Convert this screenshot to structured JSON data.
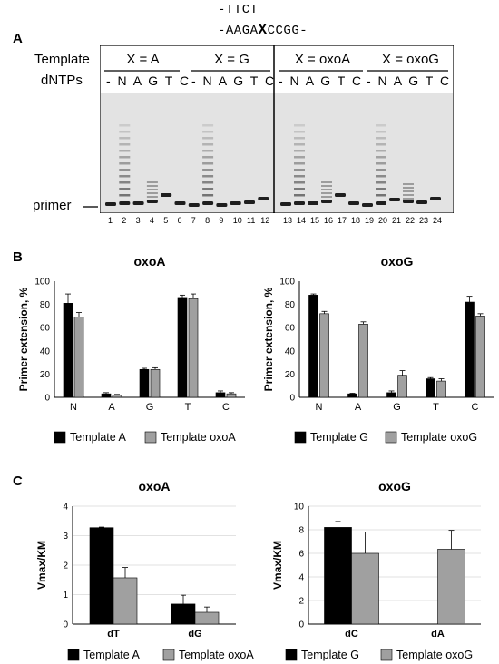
{
  "panels": {
    "A": {
      "letter": "A",
      "seq_top": "-TTCT",
      "seq_bottom_pre": "-AAGA",
      "seq_bottom_x": "X",
      "seq_bottom_post": "CCGG-",
      "row_template_label": "Template",
      "row_dntp_label": "dNTPs",
      "groups": [
        "X = A",
        "X = G",
        "X = oxoA",
        "X = oxoG"
      ],
      "dntp_left": "- N A G T C",
      "dntp_left2": "- N A G T C",
      "dntp_right": "- N A G T C",
      "dntp_right2": "- N A G T C",
      "primer_label": "primer",
      "lane_numbers": [
        "1",
        "2",
        "3",
        "4",
        "5",
        "6",
        "7",
        "8",
        "9",
        "10",
        "11",
        "12",
        "13",
        "14",
        "15",
        "16",
        "17",
        "18",
        "19",
        "20",
        "21",
        "22",
        "23",
        "24"
      ]
    },
    "B": {
      "letter": "B"
    },
    "C": {
      "letter": "C"
    }
  },
  "chart_data": [
    {
      "type": "bar",
      "title": "oxoA",
      "ylabel": "Primer extension, %",
      "categories": [
        "N",
        "A",
        "G",
        "T",
        "C"
      ],
      "ylim": [
        0,
        100
      ],
      "yticks": [
        0,
        20,
        40,
        60,
        80,
        100
      ],
      "series": [
        {
          "name": "Template A",
          "values": [
            81,
            3,
            24,
            86,
            4
          ],
          "errors": [
            8,
            1,
            1,
            2,
            1.5
          ],
          "color": "#000000"
        },
        {
          "name": "Template oxoA",
          "values": [
            69,
            2,
            24,
            85,
            3
          ],
          "errors": [
            4,
            0.5,
            1.5,
            4,
            1
          ],
          "color": "#a0a0a0"
        }
      ]
    },
    {
      "type": "bar",
      "title": "oxoG",
      "ylabel": "Primer extension, %",
      "categories": [
        "N",
        "A",
        "G",
        "T",
        "C"
      ],
      "ylim": [
        0,
        100
      ],
      "yticks": [
        0,
        20,
        40,
        60,
        80,
        100
      ],
      "series": [
        {
          "name": "Template G",
          "values": [
            88,
            3,
            4,
            16,
            82
          ],
          "errors": [
            1,
            0.5,
            1.5,
            1,
            5
          ],
          "color": "#000000"
        },
        {
          "name": "Template oxoG",
          "values": [
            72,
            63,
            19,
            14,
            70
          ],
          "errors": [
            2,
            2,
            4,
            2,
            2
          ],
          "color": "#a0a0a0"
        }
      ]
    },
    {
      "type": "bar",
      "title": "oxoA",
      "ylabel": "Vmax/KM",
      "categories": [
        "dT",
        "dG"
      ],
      "ylim": [
        0,
        4
      ],
      "yticks": [
        0,
        1,
        2,
        3,
        4
      ],
      "series": [
        {
          "name": "Template A",
          "values": [
            3.27,
            0.68
          ],
          "errors": [
            0.02,
            0.3
          ],
          "color": "#000000"
        },
        {
          "name": "Template oxoA",
          "values": [
            1.57,
            0.4
          ],
          "errors": [
            0.35,
            0.18
          ],
          "color": "#a0a0a0"
        }
      ]
    },
    {
      "type": "bar",
      "title": "oxoG",
      "ylabel": "Vmax/KM",
      "categories": [
        "dC",
        "dA"
      ],
      "ylim": [
        0,
        10
      ],
      "yticks": [
        0,
        2,
        4,
        6,
        8,
        10
      ],
      "series": [
        {
          "name": "Template G",
          "values": [
            8.2,
            0
          ],
          "errors": [
            0.5,
            0
          ],
          "color": "#000000"
        },
        {
          "name": "Template oxoG",
          "values": [
            6.0,
            6.35
          ],
          "errors": [
            1.8,
            1.6
          ],
          "color": "#a0a0a0"
        }
      ]
    }
  ]
}
